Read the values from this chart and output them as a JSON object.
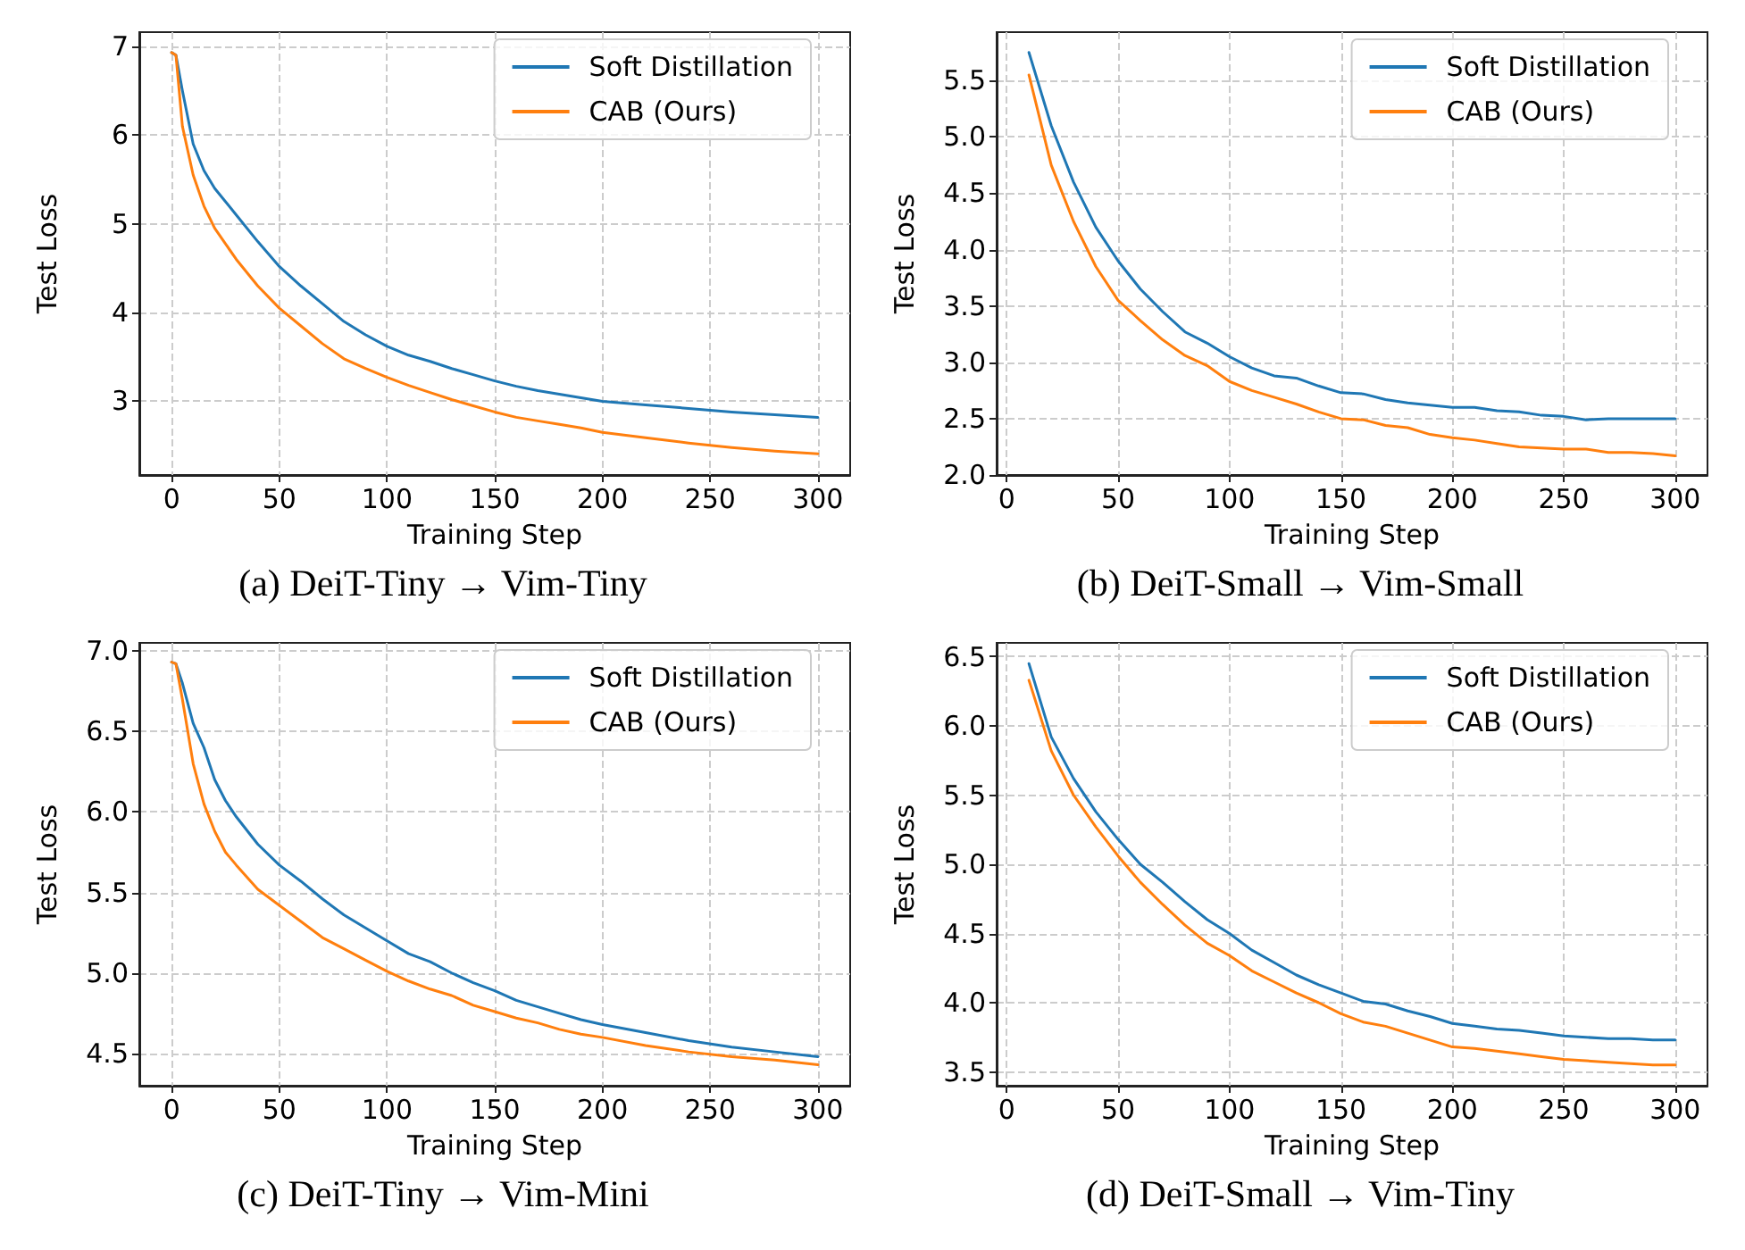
{
  "chart_data": [
    {
      "type": "line",
      "title": "(a) DeiT-Tiny → Vim-Tiny",
      "xlabel": "Training Step",
      "ylabel": "Test Loss",
      "xlim": [
        -15,
        315
      ],
      "xticks": [
        0,
        50,
        100,
        150,
        200,
        250,
        300
      ],
      "ylim": [
        2.17,
        7.16
      ],
      "yticks": [
        3,
        4,
        5,
        6,
        7
      ],
      "grid": true,
      "legend": "top right",
      "marker": "none",
      "line_style": "solid",
      "x": [
        0,
        2,
        5,
        10,
        15,
        20,
        30,
        40,
        50,
        60,
        70,
        80,
        90,
        100,
        110,
        120,
        130,
        140,
        150,
        160,
        170,
        180,
        190,
        200,
        220,
        240,
        260,
        280,
        300
      ],
      "series": [
        {
          "name": "Soft Distillation",
          "color": "#1f77b4",
          "values": [
            6.93,
            6.9,
            6.5,
            5.9,
            5.6,
            5.4,
            5.1,
            4.8,
            4.52,
            4.3,
            4.1,
            3.9,
            3.75,
            3.62,
            3.52,
            3.45,
            3.37,
            3.3,
            3.23,
            3.17,
            3.12,
            3.08,
            3.04,
            3.0,
            2.96,
            2.92,
            2.88,
            2.85,
            2.82
          ]
        },
        {
          "name": "CAB (Ours)",
          "color": "#ff7f0e",
          "values": [
            6.93,
            6.9,
            6.1,
            5.55,
            5.2,
            4.95,
            4.6,
            4.3,
            4.05,
            3.85,
            3.65,
            3.48,
            3.37,
            3.27,
            3.18,
            3.1,
            3.02,
            2.95,
            2.88,
            2.82,
            2.78,
            2.74,
            2.7,
            2.65,
            2.59,
            2.53,
            2.48,
            2.44,
            2.41
          ]
        }
      ]
    },
    {
      "type": "line",
      "title": "(b) DeiT-Small → Vim-Small",
      "xlabel": "Training Step",
      "ylabel": "Test Loss",
      "xlim": [
        -4.5,
        314.5
      ],
      "xticks": [
        0,
        50,
        100,
        150,
        200,
        250,
        300
      ],
      "ylim": [
        2.0,
        5.93
      ],
      "yticks": [
        {
          "value": 2,
          "label": "2.0"
        },
        2.5,
        {
          "value": 3,
          "label": "3.0"
        },
        3.5,
        {
          "value": 4,
          "label": "4.0"
        },
        4.5,
        {
          "value": 5,
          "label": "5.0"
        },
        5.5
      ],
      "grid": true,
      "legend": "top right",
      "marker": "none",
      "line_style": "solid",
      "x": [
        10,
        20,
        30,
        40,
        50,
        60,
        70,
        80,
        90,
        100,
        110,
        120,
        130,
        140,
        150,
        160,
        170,
        180,
        190,
        200,
        210,
        220,
        230,
        240,
        250,
        260,
        270,
        280,
        290,
        300
      ],
      "series": [
        {
          "name": "Soft Distillation",
          "color": "#1f77b4",
          "values": [
            5.75,
            5.1,
            4.6,
            4.2,
            3.9,
            3.65,
            3.45,
            3.27,
            3.17,
            3.05,
            2.95,
            2.88,
            2.86,
            2.79,
            2.73,
            2.72,
            2.67,
            2.64,
            2.62,
            2.6,
            2.6,
            2.57,
            2.56,
            2.53,
            2.52,
            2.49,
            2.5,
            2.5,
            2.5,
            2.5
          ]
        },
        {
          "name": "CAB (Ours)",
          "color": "#ff7f0e",
          "values": [
            5.55,
            4.75,
            4.25,
            3.85,
            3.55,
            3.37,
            3.2,
            3.06,
            2.97,
            2.83,
            2.75,
            2.69,
            2.63,
            2.56,
            2.5,
            2.49,
            2.44,
            2.42,
            2.36,
            2.33,
            2.31,
            2.28,
            2.25,
            2.24,
            2.23,
            2.23,
            2.2,
            2.2,
            2.19,
            2.17
          ]
        }
      ]
    },
    {
      "type": "line",
      "title": "(c) DeiT-Tiny → Vim-Mini",
      "xlabel": "Training Step",
      "ylabel": "Test Loss",
      "xlim": [
        -15,
        315
      ],
      "xticks": [
        0,
        50,
        100,
        150,
        200,
        250,
        300
      ],
      "ylim": [
        4.3,
        7.05
      ],
      "yticks": [
        4.5,
        {
          "value": 5,
          "label": "5.0"
        },
        5.5,
        {
          "value": 6,
          "label": "6.0"
        },
        6.5,
        {
          "value": 7,
          "label": "7.0"
        }
      ],
      "grid": true,
      "legend": "top right",
      "marker": "none",
      "line_style": "solid",
      "x": [
        0,
        2,
        5,
        10,
        15,
        20,
        25,
        30,
        40,
        50,
        60,
        70,
        80,
        90,
        100,
        110,
        120,
        130,
        140,
        150,
        160,
        170,
        180,
        190,
        200,
        220,
        240,
        260,
        280,
        300
      ],
      "series": [
        {
          "name": "Soft Distillation",
          "color": "#1f77b4",
          "values": [
            6.93,
            6.92,
            6.8,
            6.55,
            6.4,
            6.2,
            6.07,
            5.97,
            5.8,
            5.67,
            5.57,
            5.46,
            5.36,
            5.28,
            5.2,
            5.12,
            5.07,
            5.0,
            4.94,
            4.89,
            4.83,
            4.79,
            4.75,
            4.71,
            4.68,
            4.63,
            4.58,
            4.54,
            4.51,
            4.48
          ]
        },
        {
          "name": "CAB (Ours)",
          "color": "#ff7f0e",
          "values": [
            6.93,
            6.92,
            6.7,
            6.3,
            6.05,
            5.88,
            5.75,
            5.67,
            5.52,
            5.42,
            5.32,
            5.22,
            5.15,
            5.08,
            5.01,
            4.95,
            4.9,
            4.86,
            4.8,
            4.76,
            4.72,
            4.69,
            4.65,
            4.62,
            4.6,
            4.55,
            4.51,
            4.48,
            4.46,
            4.43
          ]
        }
      ]
    },
    {
      "type": "line",
      "title": "(d) DeiT-Small → Vim-Tiny",
      "xlabel": "Training Step",
      "ylabel": "Test Loss",
      "xlim": [
        -4.5,
        314.5
      ],
      "xticks": [
        0,
        50,
        100,
        150,
        200,
        250,
        300
      ],
      "ylim": [
        3.4,
        6.6
      ],
      "yticks": [
        3.5,
        {
          "value": 4,
          "label": "4.0"
        },
        4.5,
        {
          "value": 5,
          "label": "5.0"
        },
        5.5,
        {
          "value": 6,
          "label": "6.0"
        },
        6.5
      ],
      "grid": true,
      "legend": "top right",
      "marker": "none",
      "line_style": "solid",
      "x": [
        10,
        20,
        30,
        40,
        50,
        60,
        70,
        80,
        90,
        100,
        110,
        120,
        130,
        140,
        150,
        160,
        170,
        180,
        190,
        200,
        210,
        220,
        230,
        240,
        250,
        260,
        270,
        280,
        290,
        300
      ],
      "series": [
        {
          "name": "Soft Distillation",
          "color": "#1f77b4",
          "values": [
            6.45,
            5.92,
            5.62,
            5.38,
            5.18,
            5.0,
            4.87,
            4.73,
            4.6,
            4.5,
            4.38,
            4.29,
            4.2,
            4.13,
            4.07,
            4.01,
            3.99,
            3.94,
            3.9,
            3.85,
            3.83,
            3.81,
            3.8,
            3.78,
            3.76,
            3.75,
            3.74,
            3.74,
            3.73,
            3.73
          ]
        },
        {
          "name": "CAB (Ours)",
          "color": "#ff7f0e",
          "values": [
            6.33,
            5.82,
            5.5,
            5.27,
            5.06,
            4.87,
            4.71,
            4.56,
            4.43,
            4.34,
            4.23,
            4.15,
            4.07,
            4.0,
            3.92,
            3.86,
            3.83,
            3.78,
            3.73,
            3.68,
            3.67,
            3.65,
            3.63,
            3.61,
            3.59,
            3.58,
            3.57,
            3.56,
            3.55,
            3.55
          ]
        }
      ]
    }
  ]
}
